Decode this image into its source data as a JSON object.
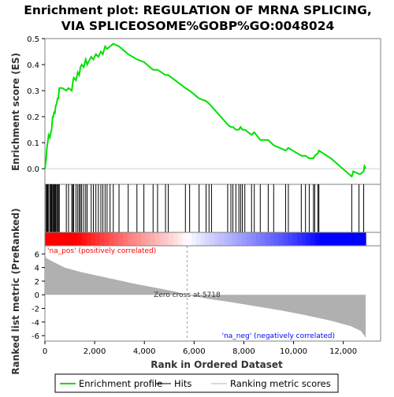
{
  "chart_data": {
    "type": "line",
    "title_line1": "Enrichment plot: REGULATION OF MRNA SPLICING,",
    "title_line2": "VIA SPLICEOSOME%GOBP%GO:0048024",
    "es_ylabel": "Enrichment score (ES)",
    "metric_ylabel": "Ranked list metric (PreRanked)",
    "xlabel": "Rank in Ordered Dataset",
    "xlim": [
      0,
      13500
    ],
    "es_ylim": [
      -0.06,
      0.5
    ],
    "metric_ylim": [
      -6.8,
      7.2
    ],
    "x_ticks": [
      0,
      2000,
      4000,
      6000,
      8000,
      10000,
      12000
    ],
    "x_tick_labels": [
      "0",
      "2,000",
      "4,000",
      "6,000",
      "8,000",
      "10,000",
      "12,000"
    ],
    "es_ticks": [
      0.0,
      0.1,
      0.2,
      0.3,
      0.4,
      0.5
    ],
    "es_tick_labels": [
      "0.0",
      "0.1",
      "0.2",
      "0.3",
      "0.4",
      "0.5"
    ],
    "metric_ticks": [
      -6,
      -4,
      -2,
      0,
      2,
      4,
      6
    ],
    "metric_tick_labels": [
      "-6",
      "-4",
      "-2",
      "0",
      "2",
      "4",
      "6"
    ],
    "zero_cross_label": "Zero cross at 5718",
    "zero_cross_rank": 5718,
    "pos_label": "'na_pos' (positively correlated)",
    "neg_label": "'na_neg' (negatively correlated)",
    "n_genes": 12900,
    "colors": {
      "es_line": "#00e000",
      "hits": "#000000",
      "metric_fill": "#b0b0b0",
      "pos": "#ff0000",
      "neg": "#0000ff",
      "frame": "#808080"
    },
    "hits": [
      40,
      80,
      110,
      150,
      200,
      240,
      270,
      310,
      340,
      370,
      400,
      430,
      470,
      510,
      540,
      580,
      860,
      950,
      1080,
      1120,
      1160,
      1250,
      1320,
      1380,
      1430,
      1480,
      1560,
      1640,
      1700,
      1860,
      1950,
      2050,
      2150,
      2250,
      2330,
      2420,
      2500,
      2620,
      2750,
      2980,
      3350,
      3700,
      3980,
      4350,
      4530,
      4850,
      4960,
      5650,
      5820,
      6200,
      6480,
      6600,
      6700,
      7350,
      7480,
      7560,
      7680,
      7800,
      7870,
      7940,
      8040,
      8310,
      8420,
      8660,
      8980,
      9200,
      9680,
      9790,
      10310,
      10480,
      10630,
      10800,
      10850,
      10980,
      11020,
      12340,
      12630,
      12820
    ],
    "es_points": [
      [
        0,
        0.0
      ],
      [
        40,
        0.03
      ],
      [
        80,
        0.08
      ],
      [
        110,
        0.1
      ],
      [
        150,
        0.13
      ],
      [
        200,
        0.12
      ],
      [
        240,
        0.14
      ],
      [
        270,
        0.15
      ],
      [
        310,
        0.2
      ],
      [
        340,
        0.2
      ],
      [
        370,
        0.22
      ],
      [
        400,
        0.21
      ],
      [
        430,
        0.24
      ],
      [
        470,
        0.25
      ],
      [
        510,
        0.27
      ],
      [
        540,
        0.27
      ],
      [
        580,
        0.31
      ],
      [
        700,
        0.31
      ],
      [
        860,
        0.3
      ],
      [
        950,
        0.31
      ],
      [
        1080,
        0.3
      ],
      [
        1120,
        0.33
      ],
      [
        1160,
        0.35
      ],
      [
        1250,
        0.34
      ],
      [
        1320,
        0.37
      ],
      [
        1380,
        0.36
      ],
      [
        1430,
        0.39
      ],
      [
        1480,
        0.4
      ],
      [
        1560,
        0.39
      ],
      [
        1640,
        0.42
      ],
      [
        1700,
        0.4
      ],
      [
        1860,
        0.43
      ],
      [
        1950,
        0.42
      ],
      [
        2050,
        0.44
      ],
      [
        2150,
        0.43
      ],
      [
        2250,
        0.45
      ],
      [
        2330,
        0.44
      ],
      [
        2420,
        0.47
      ],
      [
        2500,
        0.46
      ],
      [
        2620,
        0.47
      ],
      [
        2750,
        0.48
      ],
      [
        2980,
        0.47
      ],
      [
        3350,
        0.44
      ],
      [
        3700,
        0.42
      ],
      [
        3980,
        0.41
      ],
      [
        4350,
        0.38
      ],
      [
        4530,
        0.38
      ],
      [
        4850,
        0.36
      ],
      [
        4960,
        0.36
      ],
      [
        5650,
        0.31
      ],
      [
        5820,
        0.3
      ],
      [
        6200,
        0.27
      ],
      [
        6480,
        0.26
      ],
      [
        6600,
        0.25
      ],
      [
        6700,
        0.24
      ],
      [
        7350,
        0.17
      ],
      [
        7480,
        0.16
      ],
      [
        7560,
        0.16
      ],
      [
        7680,
        0.15
      ],
      [
        7800,
        0.15
      ],
      [
        7870,
        0.16
      ],
      [
        7940,
        0.15
      ],
      [
        8040,
        0.15
      ],
      [
        8310,
        0.13
      ],
      [
        8420,
        0.14
      ],
      [
        8660,
        0.11
      ],
      [
        8980,
        0.11
      ],
      [
        9200,
        0.09
      ],
      [
        9680,
        0.07
      ],
      [
        9790,
        0.08
      ],
      [
        10310,
        0.05
      ],
      [
        10480,
        0.05
      ],
      [
        10630,
        0.04
      ],
      [
        10800,
        0.04
      ],
      [
        10850,
        0.05
      ],
      [
        10980,
        0.06
      ],
      [
        11020,
        0.07
      ],
      [
        11500,
        0.04
      ],
      [
        12340,
        -0.03
      ],
      [
        12400,
        -0.01
      ],
      [
        12630,
        -0.02
      ],
      [
        12700,
        -0.02
      ],
      [
        12820,
        -0.01
      ],
      [
        12850,
        0.01
      ],
      [
        12900,
        0.0
      ]
    ],
    "metric_curve": [
      [
        0,
        6.0
      ],
      [
        50,
        5.4
      ],
      [
        300,
        4.9
      ],
      [
        800,
        4.0
      ],
      [
        1500,
        3.3
      ],
      [
        2500,
        2.5
      ],
      [
        3500,
        1.7
      ],
      [
        4500,
        1.0
      ],
      [
        5200,
        0.5
      ],
      [
        5718,
        0.0
      ],
      [
        6500,
        -0.55
      ],
      [
        7500,
        -1.1
      ],
      [
        8500,
        -1.7
      ],
      [
        9500,
        -2.3
      ],
      [
        10500,
        -3.0
      ],
      [
        11500,
        -3.8
      ],
      [
        12300,
        -4.6
      ],
      [
        12700,
        -5.3
      ],
      [
        12850,
        -6.0
      ],
      [
        12900,
        -6.4
      ]
    ]
  },
  "legend": {
    "entries": [
      {
        "label": "Enrichment profile",
        "style": "line",
        "color": "#00e000"
      },
      {
        "label": "Hits",
        "style": "line",
        "color": "#000000"
      },
      {
        "label": "Ranking metric scores",
        "style": "line",
        "color": "#b0b0b0"
      }
    ]
  }
}
